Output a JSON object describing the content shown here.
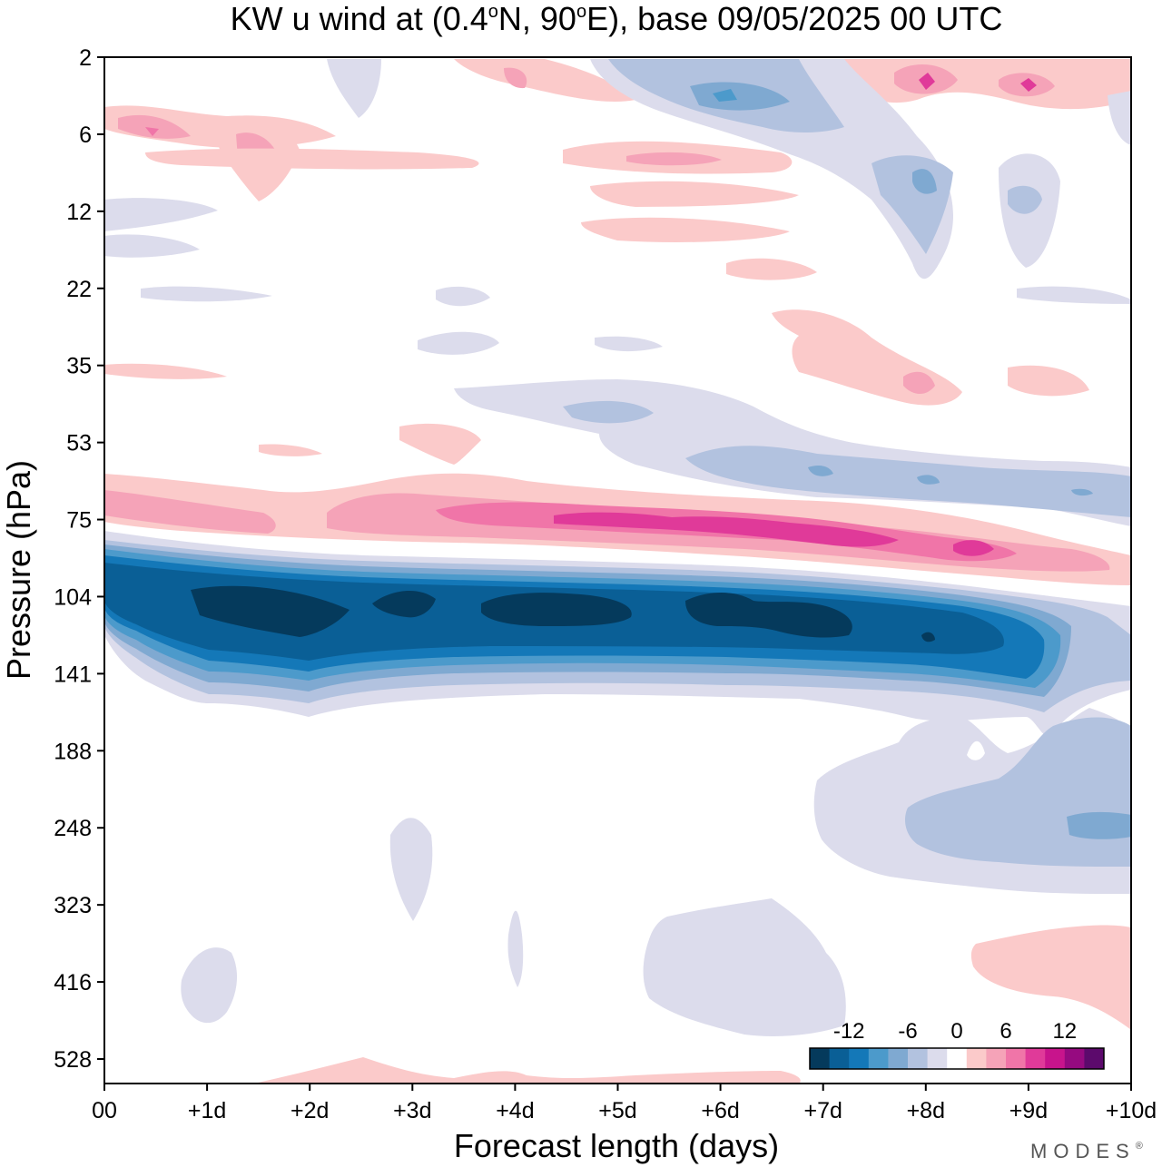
{
  "chart_data": {
    "type": "heatmap",
    "title_prefix": "KW u wind at (0.4",
    "title_deg1": "o",
    "title_mid": "N, 90",
    "title_deg2": "o",
    "title_suffix": "E),  base 09/05/2025  00 UTC",
    "xlabel": "Forecast length (days)",
    "ylabel": "Pressure (hPa)",
    "x_ticks": [
      "00",
      "+1d",
      "+2d",
      "+3d",
      "+4d",
      "+5d",
      "+6d",
      "+7d",
      "+8d",
      "+9d",
      "+10d"
    ],
    "xlim_days": [
      0,
      10
    ],
    "y_ticks": [
      2,
      6,
      12,
      22,
      35,
      53,
      75,
      104,
      141,
      188,
      248,
      323,
      416,
      528
    ],
    "colorbar": {
      "tick_labels": [
        "-12",
        "-6",
        "0",
        "6",
        "12"
      ],
      "levels": [
        -16,
        -14,
        -12,
        -10,
        -8,
        -6,
        -4,
        -2,
        2,
        4,
        6,
        8,
        10,
        12,
        14,
        16
      ],
      "colors": [
        "#053a5c",
        "#0a5f96",
        "#1478b8",
        "#4c9acb",
        "#7fa9d1",
        "#b2c2df",
        "#dcdcec",
        "#ffffff",
        "#fbcaca",
        "#f5a3b8",
        "#f075a8",
        "#e03a99",
        "#c8148c",
        "#960a80",
        "#5c0a6c"
      ]
    },
    "features": [
      {
        "name": "upper-strat positive 6hPa",
        "x": [
          0.6,
          2.0
        ],
        "p": [
          6,
          8
        ],
        "value": 5
      },
      {
        "name": "strat negative 2-8hPa",
        "x": [
          5.0,
          7.5
        ],
        "p": [
          2,
          8
        ],
        "value": -7
      },
      {
        "name": "strat negative 8-20hPa",
        "x": [
          7.6,
          8.2
        ],
        "p": [
          8,
          20
        ],
        "value": -6
      },
      {
        "name": "strat positive 3hPa",
        "x": [
          7.8,
          9.3
        ],
        "p": [
          3,
          4
        ],
        "value": 9
      },
      {
        "name": "positive 35-45hPa",
        "x": [
          6.8,
          8.6
        ],
        "p": [
          30,
          45
        ],
        "value": 4
      },
      {
        "name": "negative 45-70hPa",
        "x": [
          5.0,
          10.0
        ],
        "p": [
          45,
          70
        ],
        "value": -6
      },
      {
        "name": "westerly band 75hPa",
        "x": [
          0.0,
          10.0
        ],
        "p": [
          65,
          95
        ],
        "value": 10
      },
      {
        "name": "easterly jet 104-141hPa",
        "x": [
          0.0,
          9.2
        ],
        "p": [
          95,
          150
        ],
        "value": -16
      },
      {
        "name": "negative 188-300hPa",
        "x": [
          7.0,
          10.0
        ],
        "p": [
          170,
          300
        ],
        "value": -6
      },
      {
        "name": "negative 350-500hPa",
        "x": [
          5.2,
          7.1
        ],
        "p": [
          340,
          500
        ],
        "value": -2
      },
      {
        "name": "positive 380-450hPa",
        "x": [
          8.5,
          10.0
        ],
        "p": [
          370,
          460
        ],
        "value": 3
      }
    ]
  },
  "credit": "MODES",
  "credit_mark": "®"
}
